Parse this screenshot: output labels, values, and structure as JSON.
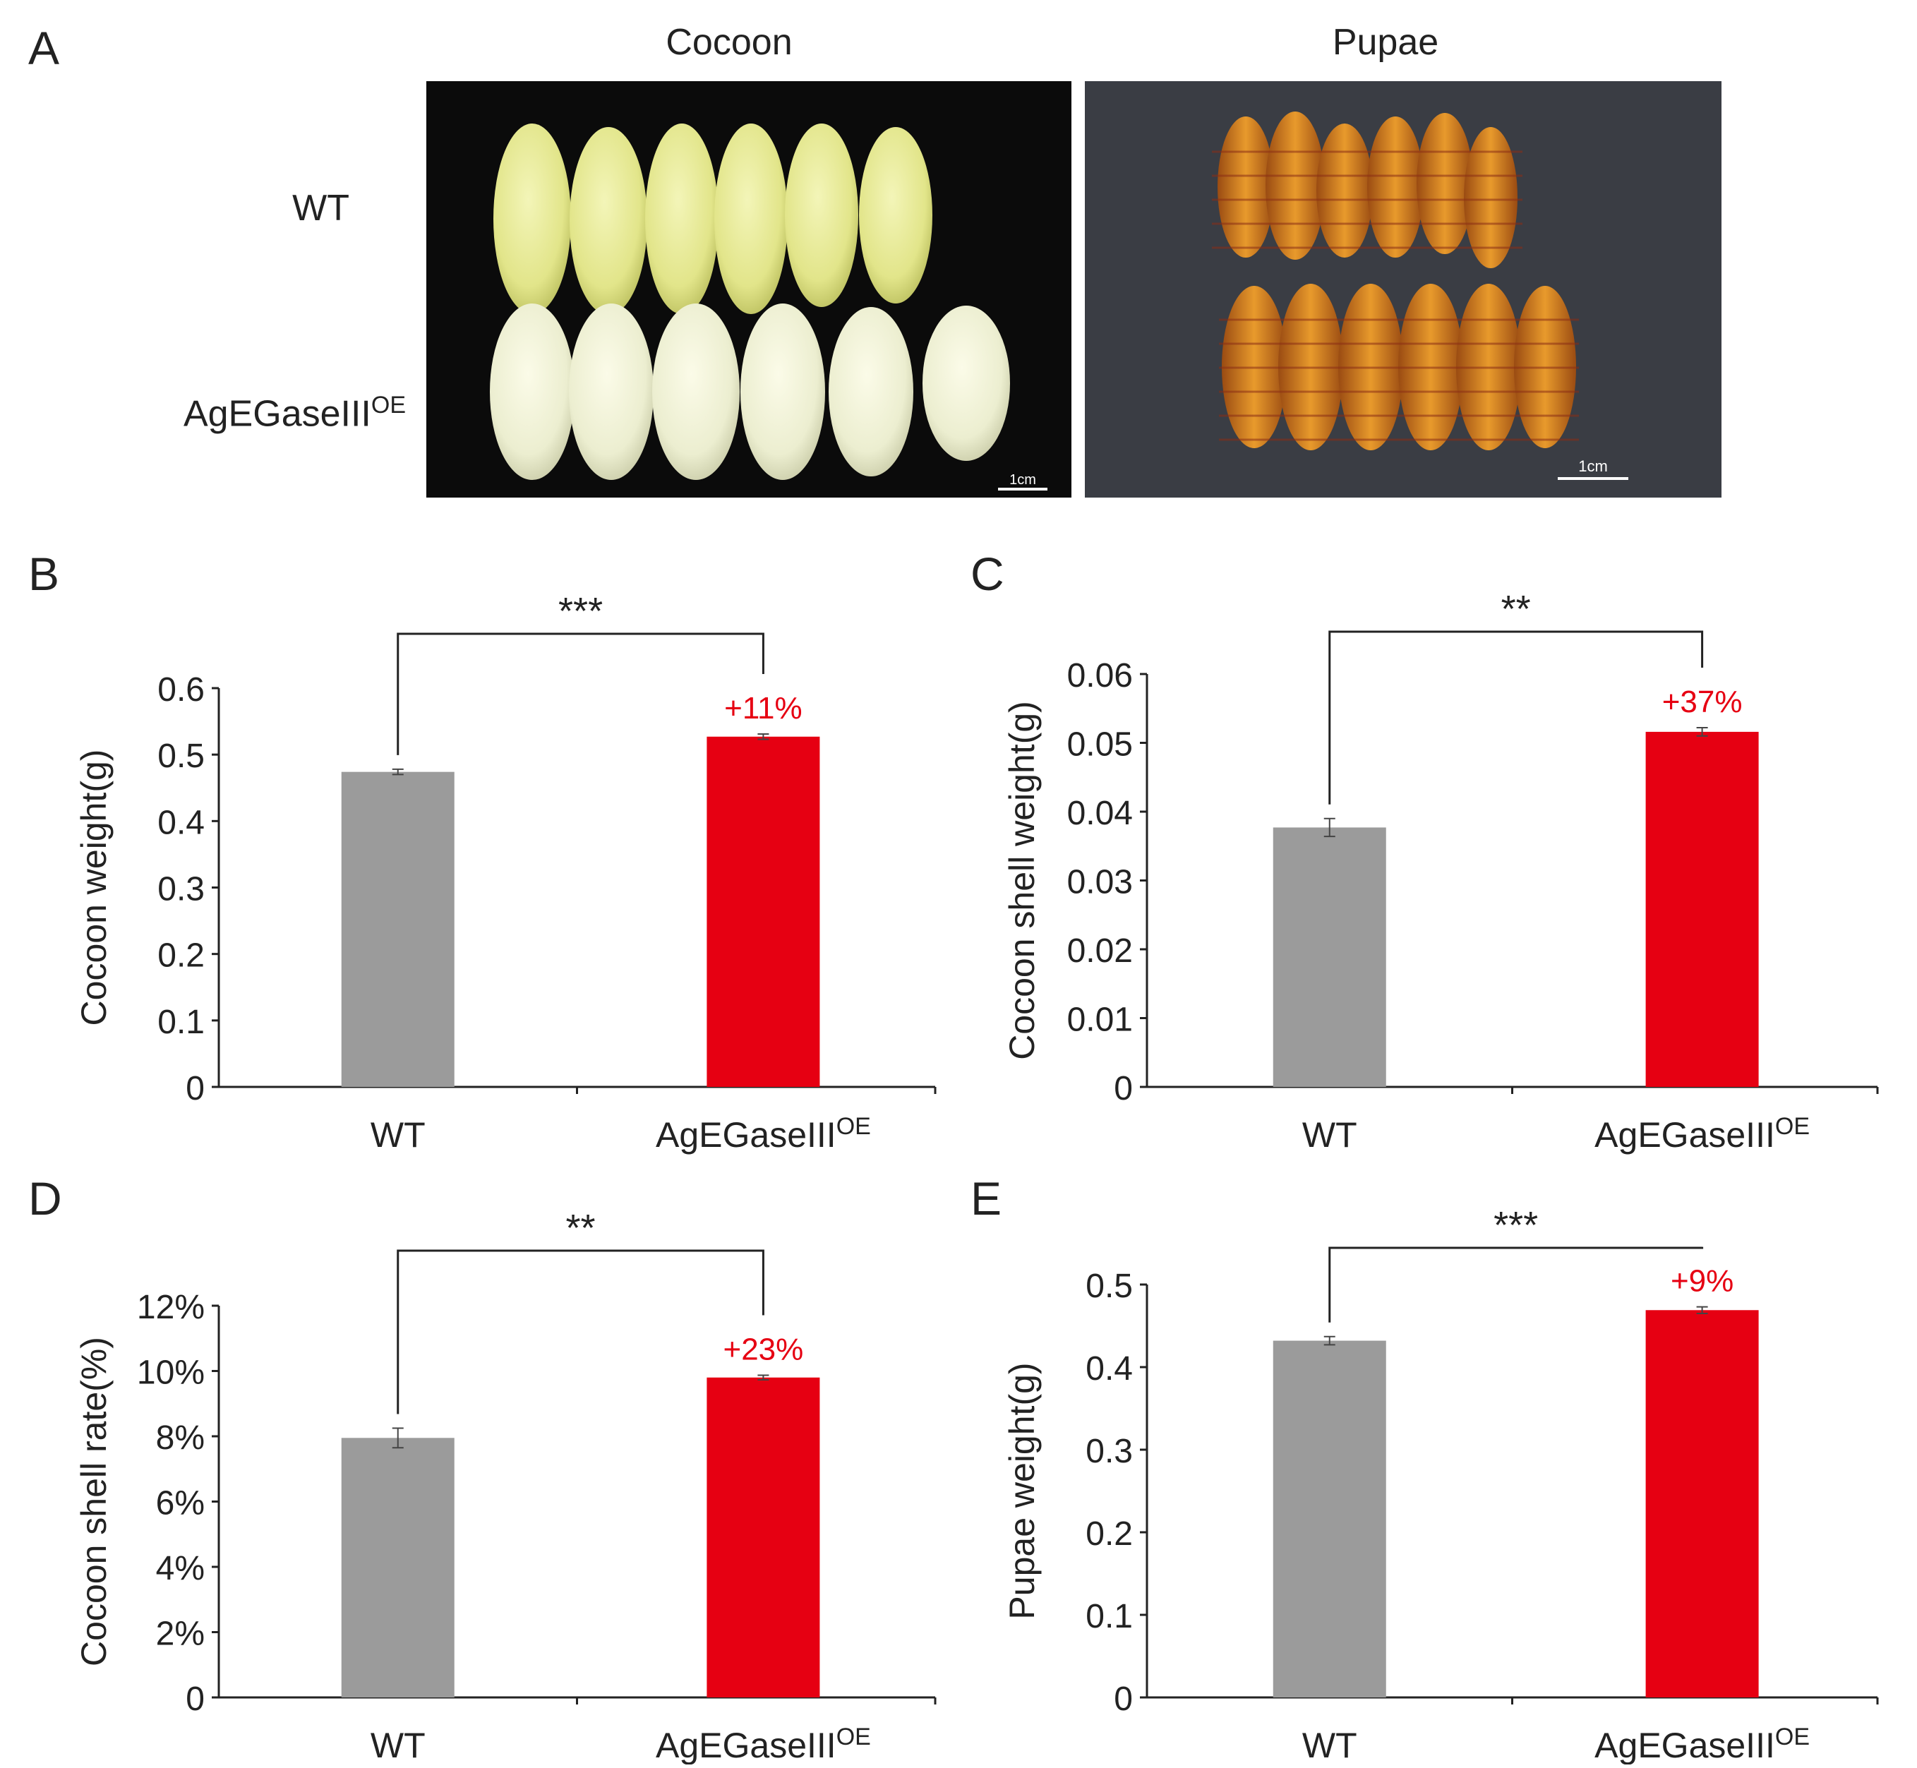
{
  "panels": {
    "a": "A",
    "b": "B",
    "c": "C",
    "d": "D",
    "e": "E"
  },
  "photos": {
    "col_cocoon": "Cocoon",
    "col_pupae": "Pupae",
    "row_wt": "WT",
    "row_oe_base": "AgEGaseIII",
    "row_oe_sup": "OE",
    "scale_cocoon": "1cm",
    "scale_pupae": "1cm"
  },
  "colors": {
    "wt": "#9b9b9b",
    "oe": "#e60012",
    "annot": "#e60012",
    "axis": "#222222"
  },
  "chart_data": [
    {
      "type": "bar",
      "panel": "B",
      "categories": [
        "WT",
        "AgEGaseIII"
      ],
      "category_sup": [
        "",
        "OE"
      ],
      "values": [
        0.474,
        0.527
      ],
      "errors": [
        0.004,
        0.004
      ],
      "ylabel": "Cocoon weight(g)",
      "ylim": [
        0,
        0.6
      ],
      "yticks": [
        "0",
        "0.1",
        "0.2",
        "0.3",
        "0.4",
        "0.5",
        "0.6"
      ],
      "significance": "***",
      "change": "+11%"
    },
    {
      "type": "bar",
      "panel": "C",
      "categories": [
        "WT",
        "AgEGaseIII"
      ],
      "category_sup": [
        "",
        "OE"
      ],
      "values": [
        0.0377,
        0.0516
      ],
      "errors": [
        0.0013,
        0.0006
      ],
      "ylabel": "Cocoon shell weight(g)",
      "ylim": [
        0,
        0.06
      ],
      "yticks": [
        "0",
        "0.01",
        "0.02",
        "0.03",
        "0.04",
        "0.05",
        "0.06"
      ],
      "significance": "**",
      "change": "+37%"
    },
    {
      "type": "bar",
      "panel": "D",
      "categories": [
        "WT",
        "AgEGaseIII"
      ],
      "category_sup": [
        "",
        "OE"
      ],
      "values": [
        7.95,
        9.8
      ],
      "errors": [
        0.3,
        0.07
      ],
      "ylabel": "Cocoon shell rate(%)",
      "ylim": [
        0,
        12
      ],
      "yticks": [
        "0",
        "2%",
        "4%",
        "6%",
        "8%",
        "10%",
        "12%"
      ],
      "significance": "**",
      "change": "+23%"
    },
    {
      "type": "bar",
      "panel": "E",
      "categories": [
        "WT",
        "AgEGaseIII"
      ],
      "category_sup": [
        "",
        "OE"
      ],
      "values": [
        0.432,
        0.469
      ],
      "errors": [
        0.005,
        0.004
      ],
      "ylabel": "Pupae weight(g)",
      "ylim": [
        0,
        0.5
      ],
      "yticks": [
        "0",
        "0.1",
        "0.2",
        "0.3",
        "0.4",
        "0.5"
      ],
      "significance": "***",
      "change": "+9%"
    }
  ]
}
